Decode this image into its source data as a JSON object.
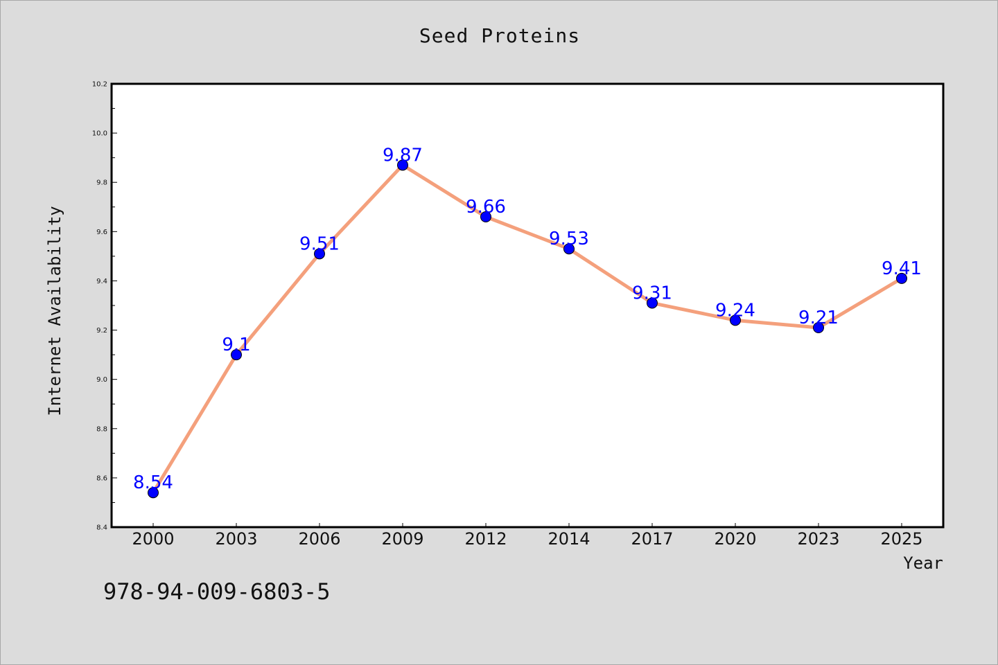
{
  "colors": {
    "background": "#dcdcdc",
    "plot_background": "#ffffff",
    "line": "#f4a07c",
    "marker": "#0000ff",
    "data_label": "#0000ff"
  },
  "chart_data": {
    "type": "line",
    "title": "Seed Proteins",
    "xlabel": "Year",
    "ylabel": "Internet Availability",
    "categories": [
      "2000",
      "2003",
      "2006",
      "2009",
      "2012",
      "2014",
      "2017",
      "2020",
      "2023",
      "2025"
    ],
    "series": [
      {
        "values": [
          8.54,
          9.1,
          9.51,
          9.87,
          9.66,
          9.53,
          9.31,
          9.24,
          9.21,
          9.41
        ],
        "labels": [
          "8.54",
          "9.1",
          "9.51",
          "9.87",
          "9.66",
          "9.53",
          "9.31",
          "9.24",
          "9.21",
          "9.41"
        ]
      }
    ],
    "ylim": [
      8.4,
      10.2
    ],
    "yticks": [
      "8.4",
      "8.6",
      "8.8",
      "9.0",
      "9.2",
      "9.4",
      "9.6",
      "9.8",
      "10.0",
      "10.2"
    ],
    "grid": false,
    "legend": "none"
  },
  "annotation": {
    "isbn": "978-94-009-6803-5"
  }
}
